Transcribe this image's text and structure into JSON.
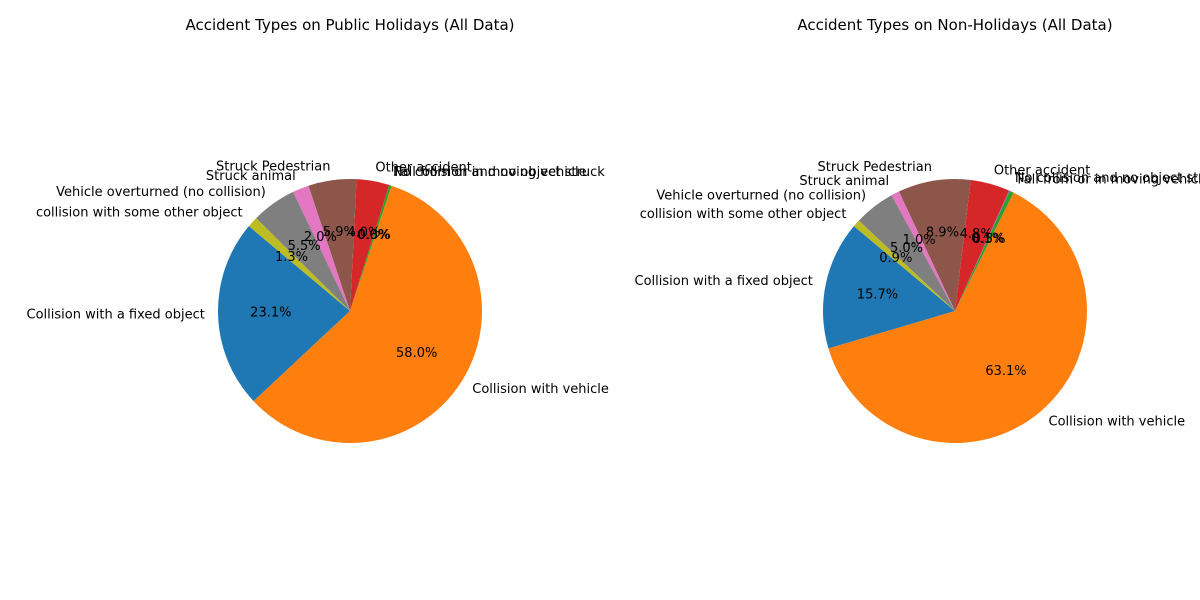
{
  "chart_data": [
    {
      "type": "pie",
      "title": "Accident Types on Public Holidays (All Data)",
      "slices": [
        {
          "label": "Collision with a fixed object",
          "value": 23.1,
          "pct_label": "23.1%",
          "color": "#1f77b4"
        },
        {
          "label": "Collision with vehicle",
          "value": 58.0,
          "pct_label": "58.0%",
          "color": "#ff7f0e"
        },
        {
          "label": "Fall from or in moving vehicle",
          "value": 0.3,
          "pct_label": "0.3%",
          "color": "#2ca02c"
        },
        {
          "label": "No collision and no object struck",
          "value": 0.0,
          "pct_label": "0.0%",
          "color": "#9467bd"
        },
        {
          "label": "Other accident",
          "value": 4.0,
          "pct_label": "4.0%",
          "color": "#d62728"
        },
        {
          "label": "Struck Pedestrian",
          "value": 5.9,
          "pct_label": "5.9%",
          "color": "#8c564b"
        },
        {
          "label": "Struck animal",
          "value": 2.0,
          "pct_label": "2.0%",
          "color": "#e377c2"
        },
        {
          "label": "Vehicle overturned (no collision)",
          "value": 5.5,
          "pct_label": "5.5%",
          "color": "#7f7f7f"
        },
        {
          "label": "collision with some other object",
          "value": 1.3,
          "pct_label": "1.3%",
          "color": "#bcbd22"
        }
      ]
    },
    {
      "type": "pie",
      "title": "Accident Types on Non-Holidays (All Data)",
      "slices": [
        {
          "label": "Collision with a fixed object",
          "value": 15.7,
          "pct_label": "15.7%",
          "color": "#1f77b4"
        },
        {
          "label": "Collision with vehicle",
          "value": 63.1,
          "pct_label": "63.1%",
          "color": "#ff7f0e"
        },
        {
          "label": "Fall from or in moving vehicle",
          "value": 0.5,
          "pct_label": "0.5%",
          "color": "#2ca02c"
        },
        {
          "label": "No collision and no object struck",
          "value": 0.1,
          "pct_label": "0.1%",
          "color": "#9467bd"
        },
        {
          "label": "Other accident",
          "value": 4.8,
          "pct_label": "4.8%",
          "color": "#d62728"
        },
        {
          "label": "Struck Pedestrian",
          "value": 8.9,
          "pct_label": "8.9%",
          "color": "#8c564b"
        },
        {
          "label": "Struck animal",
          "value": 1.0,
          "pct_label": "1.0%",
          "color": "#e377c2"
        },
        {
          "label": "Vehicle overturned (no collision)",
          "value": 5.0,
          "pct_label": "5.0%",
          "color": "#7f7f7f"
        },
        {
          "label": "collision with some other object",
          "value": 0.9,
          "pct_label": "0.9%",
          "color": "#bcbd22"
        }
      ]
    }
  ]
}
